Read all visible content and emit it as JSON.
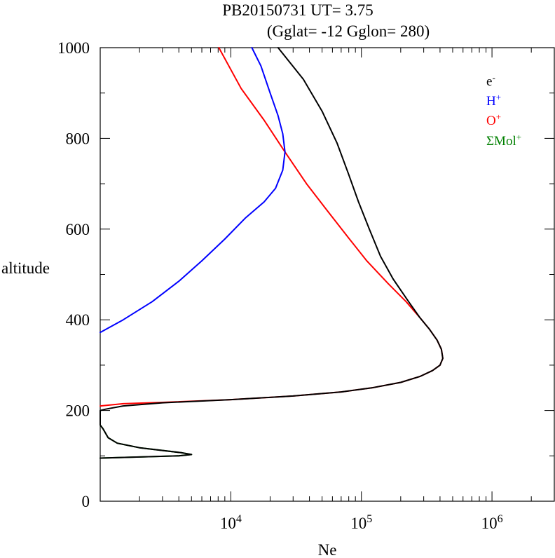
{
  "chart_data": {
    "type": "line",
    "title_line1": "PB20150731    UT=  3.75",
    "title_line2": "(Gglat= -12   Gglon=  280)",
    "xlabel": "Ne",
    "ylabel": "altitude",
    "x_scale": "log",
    "xlim": [
      1000,
      3000000
    ],
    "ylim": [
      0,
      1000
    ],
    "x_ticks": [
      {
        "base": "10",
        "exp": "4",
        "value": 10000
      },
      {
        "base": "10",
        "exp": "5",
        "value": 100000
      },
      {
        "base": "10",
        "exp": "6",
        "value": 1000000
      }
    ],
    "y_ticks": [
      "0",
      "200",
      "400",
      "600",
      "800",
      "1000"
    ],
    "legend": {
      "placement": "top-right",
      "items": [
        {
          "base": "e",
          "sup": "-",
          "color": "#000000"
        },
        {
          "base": "H",
          "sup": "+",
          "color": "#0000ff"
        },
        {
          "base": "O",
          "sup": "+",
          "color": "#ff0000"
        },
        {
          "base": "ΣMol",
          "sup": "+",
          "color": "#008000"
        }
      ]
    },
    "series": [
      {
        "name": "ΣMol+",
        "color": "#008000",
        "points": [
          [
            1000,
            95
          ],
          [
            4000,
            100
          ],
          [
            5000,
            103
          ],
          [
            4200,
            107
          ],
          [
            2000,
            118
          ],
          [
            1350,
            128
          ],
          [
            1150,
            140
          ],
          [
            1050,
            160
          ],
          [
            1000,
            168
          ]
        ]
      },
      {
        "name": "O+",
        "color": "#ff0000",
        "points": [
          [
            1000,
            210
          ],
          [
            1500,
            215
          ],
          [
            3000,
            218
          ],
          [
            10000,
            224
          ],
          [
            30000,
            232
          ],
          [
            70000,
            241
          ],
          [
            120000,
            250
          ],
          [
            200000,
            262
          ],
          [
            280000,
            275
          ],
          [
            350000,
            288
          ],
          [
            400000,
            300
          ],
          [
            420000,
            315
          ],
          [
            410000,
            335
          ],
          [
            380000,
            355
          ],
          [
            330000,
            380
          ],
          [
            280000,
            405
          ],
          [
            220000,
            440
          ],
          [
            160000,
            480
          ],
          [
            110000,
            530
          ],
          [
            80000,
            580
          ],
          [
            55000,
            640
          ],
          [
            38000,
            700
          ],
          [
            26000,
            770
          ],
          [
            18000,
            840
          ],
          [
            12000,
            910
          ],
          [
            8100,
            1000
          ]
        ]
      },
      {
        "name": "H+",
        "color": "#0000ff",
        "points": [
          [
            1000,
            372
          ],
          [
            1500,
            400
          ],
          [
            2500,
            440
          ],
          [
            4000,
            485
          ],
          [
            6000,
            530
          ],
          [
            9000,
            578
          ],
          [
            13000,
            625
          ],
          [
            18000,
            660
          ],
          [
            22000,
            690
          ],
          [
            25000,
            730
          ],
          [
            26000,
            770
          ],
          [
            25000,
            810
          ],
          [
            23000,
            850
          ],
          [
            20000,
            900
          ],
          [
            17000,
            960
          ],
          [
            14500,
            1000
          ]
        ]
      },
      {
        "name": "e-",
        "color": "#000000",
        "points": [
          [
            1000,
            95
          ],
          [
            4000,
            100
          ],
          [
            5000,
            103
          ],
          [
            4200,
            107
          ],
          [
            2000,
            118
          ],
          [
            1350,
            128
          ],
          [
            1150,
            140
          ],
          [
            1050,
            160
          ],
          [
            1000,
            168
          ],
          [
            1000,
            200
          ],
          [
            1100,
            203
          ],
          [
            1500,
            210
          ],
          [
            3000,
            217
          ],
          [
            10000,
            224
          ],
          [
            30000,
            232
          ],
          [
            70000,
            241
          ],
          [
            120000,
            250
          ],
          [
            200000,
            262
          ],
          [
            280000,
            275
          ],
          [
            350000,
            288
          ],
          [
            400000,
            300
          ],
          [
            420000,
            315
          ],
          [
            410000,
            335
          ],
          [
            380000,
            355
          ],
          [
            330000,
            380
          ],
          [
            280000,
            405
          ],
          [
            230000,
            440
          ],
          [
            175000,
            490
          ],
          [
            140000,
            540
          ],
          [
            115000,
            600
          ],
          [
            95000,
            660
          ],
          [
            80000,
            720
          ],
          [
            65000,
            790
          ],
          [
            50000,
            860
          ],
          [
            36000,
            930
          ],
          [
            27000,
            975
          ],
          [
            23000,
            1000
          ]
        ]
      }
    ]
  }
}
